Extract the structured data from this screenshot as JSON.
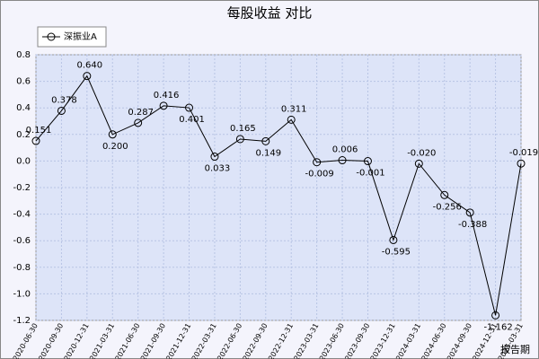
{
  "chart_data": {
    "type": "line",
    "title": "每股收益 对比",
    "x_label": "报告期",
    "x": [
      "2020-06-30",
      "2020-09-30",
      "2020-12-31",
      "2021-03-31",
      "2021-06-30",
      "2021-09-30",
      "2021-12-31",
      "2022-03-31",
      "2022-06-30",
      "2022-09-30",
      "2022-12-31",
      "2023-03-31",
      "2023-06-30",
      "2023-09-30",
      "2023-12-31",
      "2024-03-31",
      "2024-06-30",
      "2024-09-30",
      "2024-12-31",
      "2025-03-31"
    ],
    "series": [
      {
        "name": "深振业A",
        "color": "#000000",
        "values": [
          0.151,
          0.378,
          0.64,
          0.2,
          0.287,
          0.416,
          0.401,
          0.033,
          0.165,
          0.149,
          0.311,
          -0.009,
          0.006,
          -0.001,
          -0.595,
          -0.02,
          -0.256,
          -0.388,
          -1.162,
          -0.019
        ],
        "value_labels": [
          "0.151",
          "0.378",
          "0.640",
          "0.200",
          "0.287",
          "0.416",
          "0.401",
          "0.033",
          "0.165",
          "0.149",
          "0.311",
          "-0.009",
          "0.006",
          "-0.001",
          "-0.595",
          "-0.020",
          "-0.256",
          "-0.388",
          "-1.162",
          "-0.019"
        ]
      }
    ],
    "ylim": [
      -1.2,
      0.8
    ],
    "yticks": [
      0.8,
      0.6,
      0.4,
      0.2,
      {
        "value": 0,
        "label": "0.0"
      },
      -0.2,
      -0.4,
      -0.6,
      -0.8,
      {
        "value": -1,
        "label": "-1.0"
      },
      -1.2
    ],
    "grid": true,
    "legend": "top-left"
  }
}
